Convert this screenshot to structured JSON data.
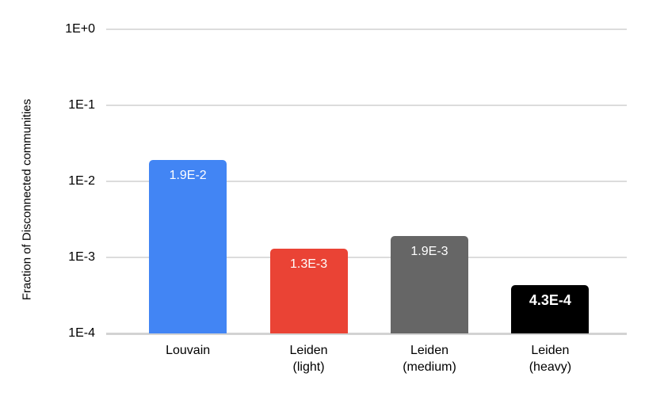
{
  "chart_data": {
    "type": "bar",
    "title": "",
    "xlabel": "",
    "ylabel": "Fraction of Disconnected communities",
    "yscale": "log",
    "ylim": [
      0.0001,
      1
    ],
    "ytick_labels": [
      "1E+0",
      "1E-1",
      "1E-2",
      "1E-3",
      "1E-4"
    ],
    "categories": [
      "Louvain",
      "Leiden\n(light)",
      "Leiden\n(medium)",
      "Leiden\n(heavy)"
    ],
    "values": [
      0.019,
      0.0013,
      0.0019,
      0.00043
    ],
    "bar_labels": [
      "1.9E-2",
      "1.3E-3",
      "1.9E-3",
      "4.3E-4"
    ],
    "bar_colors": [
      "#4285F4",
      "#EA4335",
      "#666666",
      "#000000"
    ],
    "bar_label_bold": [
      false,
      false,
      false,
      true
    ],
    "bar_label_color": "#FFFFFF",
    "grid": true,
    "legend": "none",
    "background_color": "#FFFFFF",
    "gridline_color": "#DCDCDC",
    "baseline_color": "#D3D3D3",
    "axis_text_color": "#000000"
  }
}
